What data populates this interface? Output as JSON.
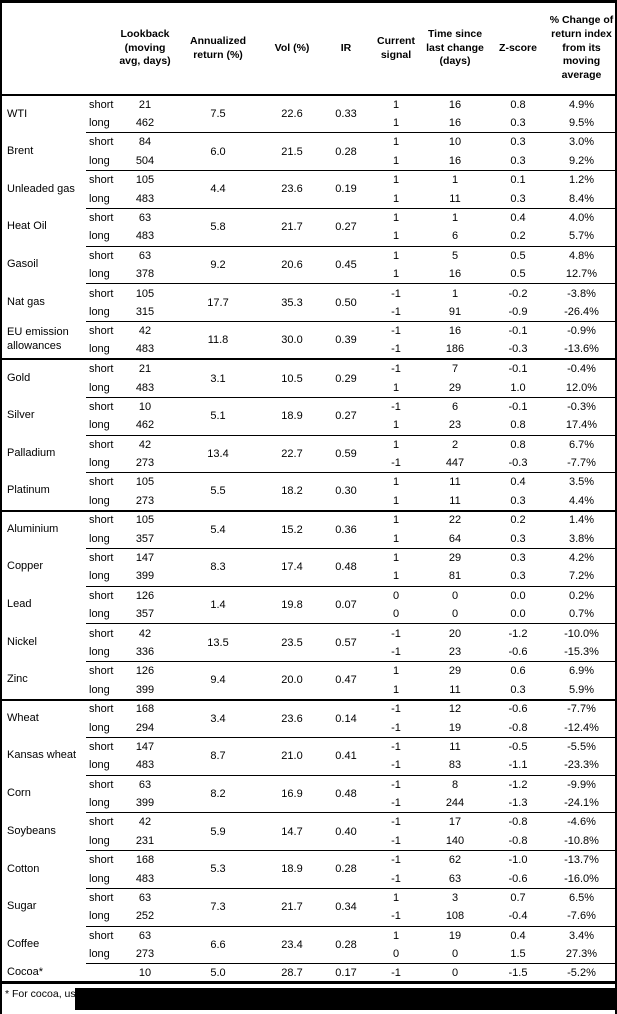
{
  "table": {
    "header": {
      "commodity": "",
      "position": "",
      "lookback": "Lookback\n(moving\navg, days)",
      "annualized": "Annualized\nreturn (%)",
      "vol": "Vol (%)",
      "ir": "IR",
      "signal": "Current\nsignal",
      "time": "Time since\nlast change\n(days)",
      "zscore": "Z-score",
      "pct": "% Change of\nreturn index\nfrom its\nmoving\naverage"
    },
    "groups": [
      {
        "name": "WTI",
        "section": false,
        "annualized": "7.5",
        "vol": "22.6",
        "ir": "0.33",
        "rows": [
          {
            "pos": "short",
            "lookback": "21",
            "signal": "1",
            "time": "16",
            "zscore": "0.8",
            "pct": "4.9%"
          },
          {
            "pos": "long",
            "lookback": "462",
            "signal": "1",
            "time": "16",
            "zscore": "0.3",
            "pct": "9.5%"
          }
        ]
      },
      {
        "name": "Brent",
        "section": false,
        "annualized": "6.0",
        "vol": "21.5",
        "ir": "0.28",
        "rows": [
          {
            "pos": "short",
            "lookback": "84",
            "signal": "1",
            "time": "10",
            "zscore": "0.3",
            "pct": "3.0%"
          },
          {
            "pos": "long",
            "lookback": "504",
            "signal": "1",
            "time": "16",
            "zscore": "0.3",
            "pct": "9.2%"
          }
        ]
      },
      {
        "name": "Unleaded gas",
        "section": false,
        "annualized": "4.4",
        "vol": "23.6",
        "ir": "0.19",
        "rows": [
          {
            "pos": "short",
            "lookback": "105",
            "signal": "1",
            "time": "1",
            "zscore": "0.1",
            "pct": "1.2%"
          },
          {
            "pos": "long",
            "lookback": "483",
            "signal": "1",
            "time": "11",
            "zscore": "0.3",
            "pct": "8.4%"
          }
        ]
      },
      {
        "name": "Heat Oil",
        "section": false,
        "annualized": "5.8",
        "vol": "21.7",
        "ir": "0.27",
        "rows": [
          {
            "pos": "short",
            "lookback": "63",
            "signal": "1",
            "time": "1",
            "zscore": "0.4",
            "pct": "4.0%"
          },
          {
            "pos": "long",
            "lookback": "483",
            "signal": "1",
            "time": "6",
            "zscore": "0.2",
            "pct": "5.7%"
          }
        ]
      },
      {
        "name": "Gasoil",
        "section": false,
        "annualized": "9.2",
        "vol": "20.6",
        "ir": "0.45",
        "rows": [
          {
            "pos": "short",
            "lookback": "63",
            "signal": "1",
            "time": "5",
            "zscore": "0.5",
            "pct": "4.8%"
          },
          {
            "pos": "long",
            "lookback": "378",
            "signal": "1",
            "time": "16",
            "zscore": "0.5",
            "pct": "12.7%"
          }
        ]
      },
      {
        "name": "Nat gas",
        "section": false,
        "annualized": "17.7",
        "vol": "35.3",
        "ir": "0.50",
        "rows": [
          {
            "pos": "short",
            "lookback": "105",
            "signal": "-1",
            "time": "1",
            "zscore": "-0.2",
            "pct": "-3.8%"
          },
          {
            "pos": "long",
            "lookback": "315",
            "signal": "-1",
            "time": "91",
            "zscore": "-0.9",
            "pct": "-26.4%"
          }
        ]
      },
      {
        "name": "EU emission allowances",
        "section": false,
        "annualized": "11.8",
        "vol": "30.0",
        "ir": "0.39",
        "rows": [
          {
            "pos": "short",
            "lookback": "42",
            "signal": "-1",
            "time": "16",
            "zscore": "-0.1",
            "pct": "-0.9%"
          },
          {
            "pos": "long",
            "lookback": "483",
            "signal": "-1",
            "time": "186",
            "zscore": "-0.3",
            "pct": "-13.6%"
          }
        ]
      },
      {
        "name": "Gold",
        "section": true,
        "annualized": "3.1",
        "vol": "10.5",
        "ir": "0.29",
        "rows": [
          {
            "pos": "short",
            "lookback": "21",
            "signal": "-1",
            "time": "7",
            "zscore": "-0.1",
            "pct": "-0.4%"
          },
          {
            "pos": "long",
            "lookback": "483",
            "signal": "1",
            "time": "29",
            "zscore": "1.0",
            "pct": "12.0%"
          }
        ]
      },
      {
        "name": "Silver",
        "section": false,
        "annualized": "5.1",
        "vol": "18.9",
        "ir": "0.27",
        "rows": [
          {
            "pos": "short",
            "lookback": "10",
            "signal": "-1",
            "time": "6",
            "zscore": "-0.1",
            "pct": "-0.3%"
          },
          {
            "pos": "long",
            "lookback": "462",
            "signal": "1",
            "time": "23",
            "zscore": "0.8",
            "pct": "17.4%"
          }
        ]
      },
      {
        "name": "Palladium",
        "section": false,
        "annualized": "13.4",
        "vol": "22.7",
        "ir": "0.59",
        "rows": [
          {
            "pos": "short",
            "lookback": "42",
            "signal": "1",
            "time": "2",
            "zscore": "0.8",
            "pct": "6.7%"
          },
          {
            "pos": "long",
            "lookback": "273",
            "signal": "-1",
            "time": "447",
            "zscore": "-0.3",
            "pct": "-7.7%"
          }
        ]
      },
      {
        "name": "Platinum",
        "section": false,
        "annualized": "5.5",
        "vol": "18.2",
        "ir": "0.30",
        "rows": [
          {
            "pos": "short",
            "lookback": "105",
            "signal": "1",
            "time": "11",
            "zscore": "0.4",
            "pct": "3.5%"
          },
          {
            "pos": "long",
            "lookback": "273",
            "signal": "1",
            "time": "11",
            "zscore": "0.3",
            "pct": "4.4%"
          }
        ]
      },
      {
        "name": "Aluminium",
        "section": true,
        "annualized": "5.4",
        "vol": "15.2",
        "ir": "0.36",
        "rows": [
          {
            "pos": "short",
            "lookback": "105",
            "signal": "1",
            "time": "22",
            "zscore": "0.2",
            "pct": "1.4%"
          },
          {
            "pos": "long",
            "lookback": "357",
            "signal": "1",
            "time": "64",
            "zscore": "0.3",
            "pct": "3.8%"
          }
        ]
      },
      {
        "name": "Copper",
        "section": false,
        "annualized": "8.3",
        "vol": "17.4",
        "ir": "0.48",
        "rows": [
          {
            "pos": "short",
            "lookback": "147",
            "signal": "1",
            "time": "29",
            "zscore": "0.3",
            "pct": "4.2%"
          },
          {
            "pos": "long",
            "lookback": "399",
            "signal": "1",
            "time": "81",
            "zscore": "0.3",
            "pct": "7.2%"
          }
        ]
      },
      {
        "name": "Lead",
        "section": false,
        "annualized": "1.4",
        "vol": "19.8",
        "ir": "0.07",
        "rows": [
          {
            "pos": "short",
            "lookback": "126",
            "signal": "0",
            "time": "0",
            "zscore": "0.0",
            "pct": "0.2%"
          },
          {
            "pos": "long",
            "lookback": "357",
            "signal": "0",
            "time": "0",
            "zscore": "0.0",
            "pct": "0.7%"
          }
        ]
      },
      {
        "name": "Nickel",
        "section": false,
        "annualized": "13.5",
        "vol": "23.5",
        "ir": "0.57",
        "rows": [
          {
            "pos": "short",
            "lookback": "42",
            "signal": "-1",
            "time": "20",
            "zscore": "-1.2",
            "pct": "-10.0%"
          },
          {
            "pos": "long",
            "lookback": "336",
            "signal": "-1",
            "time": "23",
            "zscore": "-0.6",
            "pct": "-15.3%"
          }
        ]
      },
      {
        "name": "Zinc",
        "section": false,
        "annualized": "9.4",
        "vol": "20.0",
        "ir": "0.47",
        "rows": [
          {
            "pos": "short",
            "lookback": "126",
            "signal": "1",
            "time": "29",
            "zscore": "0.6",
            "pct": "6.9%"
          },
          {
            "pos": "long",
            "lookback": "399",
            "signal": "1",
            "time": "11",
            "zscore": "0.3",
            "pct": "5.9%"
          }
        ]
      },
      {
        "name": "Wheat",
        "section": true,
        "annualized": "3.4",
        "vol": "23.6",
        "ir": "0.14",
        "rows": [
          {
            "pos": "short",
            "lookback": "168",
            "signal": "-1",
            "time": "12",
            "zscore": "-0.6",
            "pct": "-7.7%"
          },
          {
            "pos": "long",
            "lookback": "294",
            "signal": "-1",
            "time": "19",
            "zscore": "-0.8",
            "pct": "-12.4%"
          }
        ]
      },
      {
        "name": "Kansas wheat",
        "section": false,
        "annualized": "8.7",
        "vol": "21.0",
        "ir": "0.41",
        "rows": [
          {
            "pos": "short",
            "lookback": "147",
            "signal": "-1",
            "time": "11",
            "zscore": "-0.5",
            "pct": "-5.5%"
          },
          {
            "pos": "long",
            "lookback": "483",
            "signal": "-1",
            "time": "83",
            "zscore": "-1.1",
            "pct": "-23.3%"
          }
        ]
      },
      {
        "name": "Corn",
        "section": false,
        "annualized": "8.2",
        "vol": "16.9",
        "ir": "0.48",
        "rows": [
          {
            "pos": "short",
            "lookback": "63",
            "signal": "-1",
            "time": "8",
            "zscore": "-1.2",
            "pct": "-9.9%"
          },
          {
            "pos": "long",
            "lookback": "399",
            "signal": "-1",
            "time": "244",
            "zscore": "-1.3",
            "pct": "-24.1%"
          }
        ]
      },
      {
        "name": "Soybeans",
        "section": false,
        "annualized": "5.9",
        "vol": "14.7",
        "ir": "0.40",
        "rows": [
          {
            "pos": "short",
            "lookback": "42",
            "signal": "-1",
            "time": "17",
            "zscore": "-0.8",
            "pct": "-4.6%"
          },
          {
            "pos": "long",
            "lookback": "231",
            "signal": "-1",
            "time": "140",
            "zscore": "-0.8",
            "pct": "-10.8%"
          }
        ]
      },
      {
        "name": "Cotton",
        "section": false,
        "annualized": "5.3",
        "vol": "18.9",
        "ir": "0.28",
        "rows": [
          {
            "pos": "short",
            "lookback": "168",
            "signal": "-1",
            "time": "62",
            "zscore": "-1.0",
            "pct": "-13.7%"
          },
          {
            "pos": "long",
            "lookback": "483",
            "signal": "-1",
            "time": "63",
            "zscore": "-0.6",
            "pct": "-16.0%"
          }
        ]
      },
      {
        "name": "Sugar",
        "section": false,
        "annualized": "7.3",
        "vol": "21.7",
        "ir": "0.34",
        "rows": [
          {
            "pos": "short",
            "lookback": "63",
            "signal": "1",
            "time": "3",
            "zscore": "0.7",
            "pct": "6.5%"
          },
          {
            "pos": "long",
            "lookback": "252",
            "signal": "-1",
            "time": "108",
            "zscore": "-0.4",
            "pct": "-7.6%"
          }
        ]
      },
      {
        "name": "Coffee",
        "section": false,
        "annualized": "6.6",
        "vol": "23.4",
        "ir": "0.28",
        "rows": [
          {
            "pos": "short",
            "lookback": "63",
            "signal": "1",
            "time": "19",
            "zscore": "0.4",
            "pct": "3.4%"
          },
          {
            "pos": "long",
            "lookback": "273",
            "signal": "0",
            "time": "0",
            "zscore": "1.5",
            "pct": "27.3%"
          }
        ]
      },
      {
        "name": "Cocoa*",
        "section": false,
        "annualized": "5.0",
        "vol": "28.7",
        "ir": "0.17",
        "rows": [
          {
            "pos": "",
            "lookback": "10",
            "signal": "-1",
            "time": "0",
            "zscore": "-1.5",
            "pct": "-5.2%"
          }
        ]
      }
    ]
  },
  "footer": {
    "note": "* For cocoa, uses c"
  }
}
